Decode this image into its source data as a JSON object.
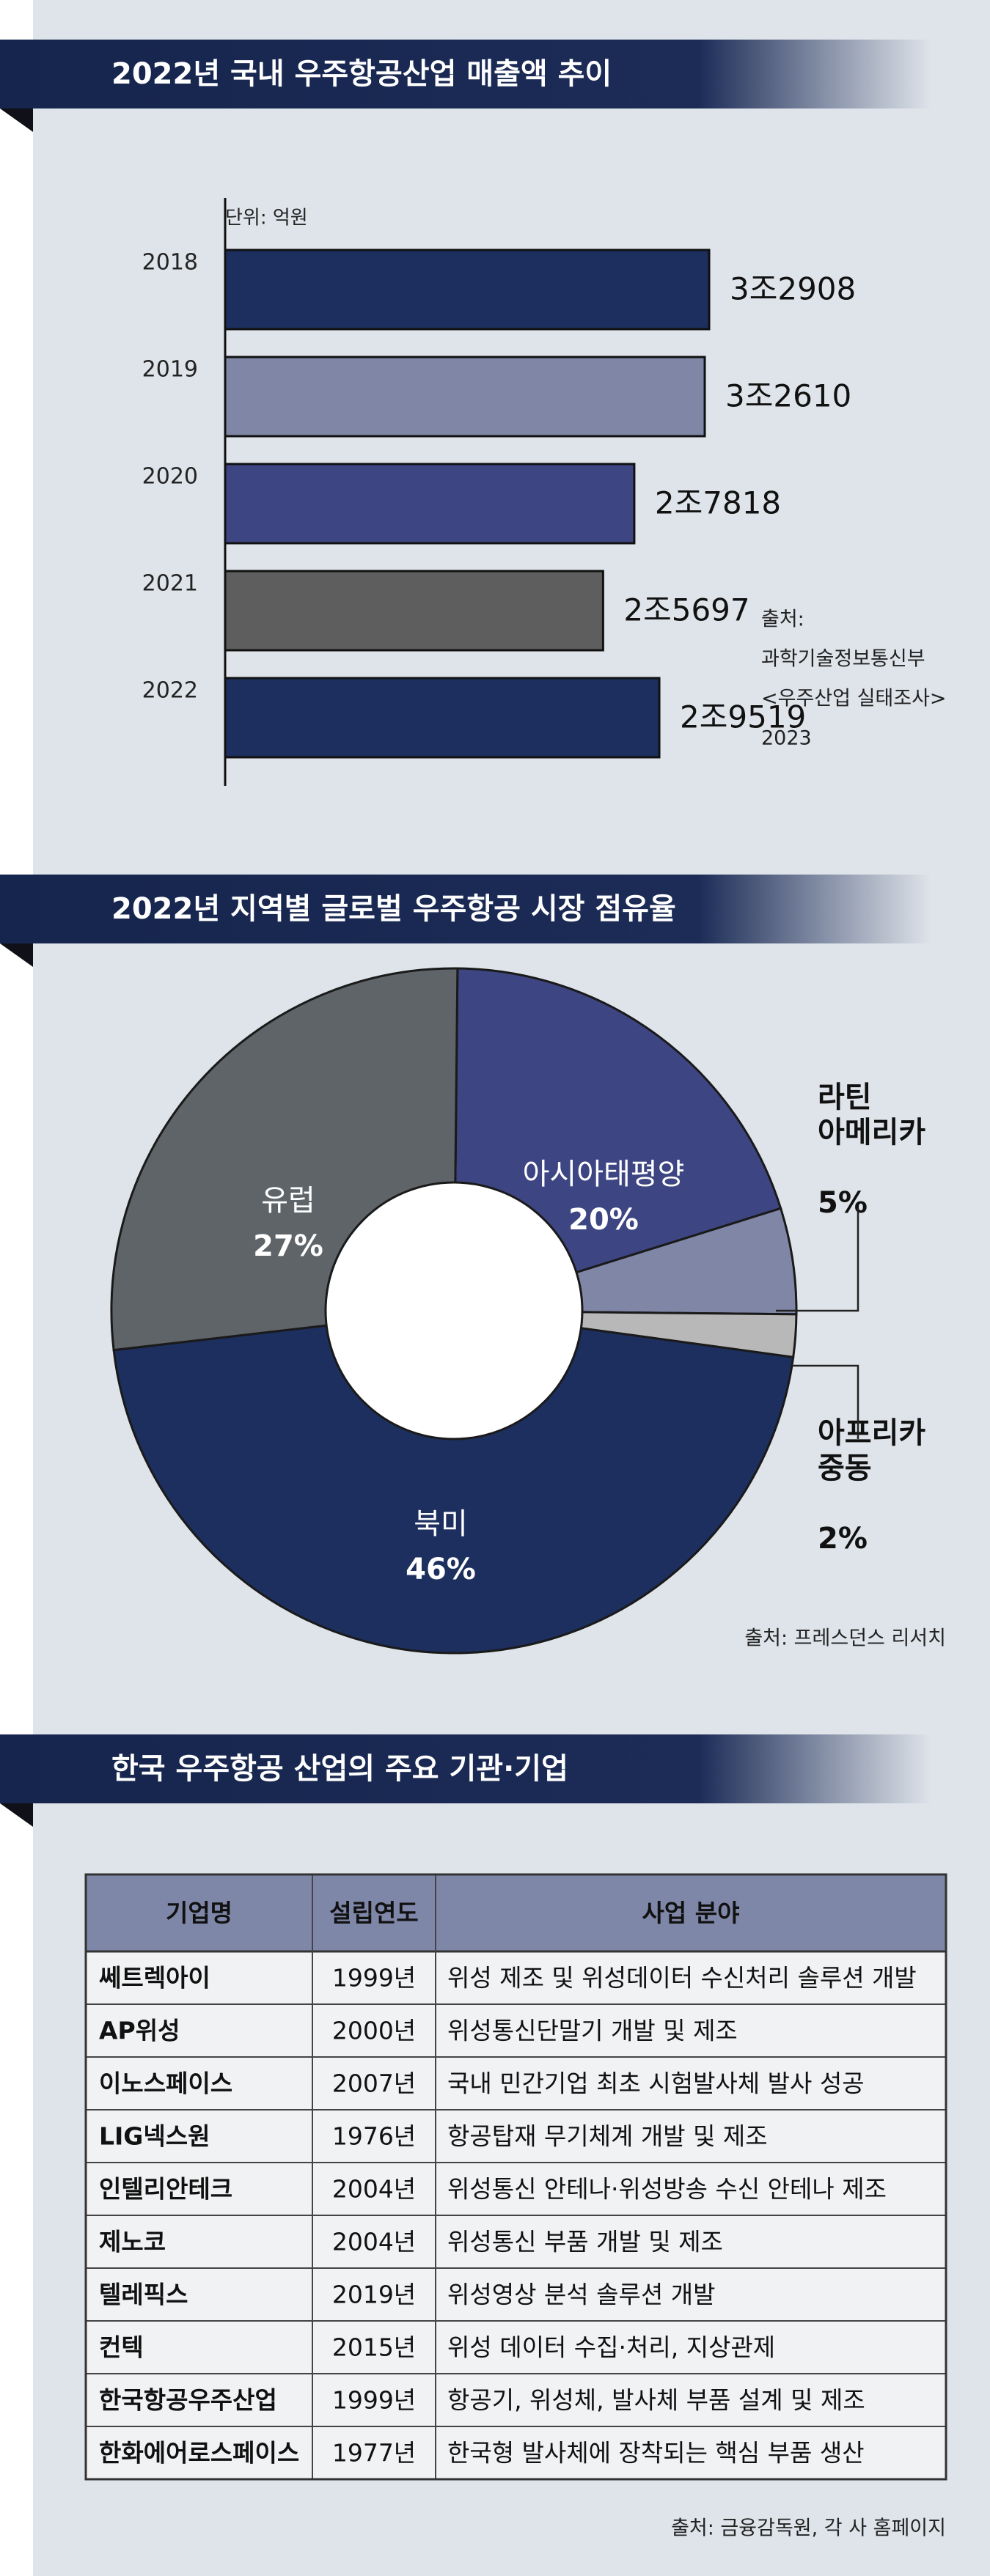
{
  "chart_data": [
    {
      "type": "bar",
      "orientation": "horizontal",
      "title": "2022년 국내 우주항공산업 매출액 추이",
      "unit": "단위: 억원",
      "categories": [
        "2018",
        "2019",
        "2020",
        "2021",
        "2022"
      ],
      "values": [
        32908,
        32610,
        27818,
        25697,
        29519
      ],
      "value_labels": [
        "3조2908",
        "3조2610",
        "2조7818",
        "2조5697",
        "2조9519"
      ],
      "colors": [
        "#1c2f5e",
        "#7f86a6",
        "#3d4682",
        "#5e5e5e",
        "#1c2f5e"
      ],
      "source": [
        "출처:",
        "과학기술정보통신부",
        "<우주산업 실태조사>",
        "2023"
      ]
    },
    {
      "type": "donut",
      "title": "2022년 지역별 글로벌 우주항공 시장 점유율",
      "categories": [
        "아시아태평양",
        "라틴 아메리카",
        "아프리카 중동",
        "북미",
        "유럽"
      ],
      "values": [
        20,
        5,
        2,
        46,
        27
      ],
      "value_labels": [
        "20%",
        "5%",
        "2%",
        "46%",
        "27%"
      ],
      "colors": [
        "#3d4682",
        "#7f86a6",
        "#b8b8b8",
        "#1c2f5e",
        "#5f6468"
      ],
      "source": "출처: 프레스던스 리서치"
    }
  ],
  "table": {
    "title": "한국 우주항공 산업의 주요 기관·기업",
    "columns": [
      "기업명",
      "설립연도",
      "사업 분야"
    ],
    "rows": [
      [
        "쎄트렉아이",
        "1999년",
        "위성 제조 및 위성데이터 수신처리 솔루션 개발"
      ],
      [
        "AP위성",
        "2000년",
        "위성통신단말기 개발 및 제조"
      ],
      [
        "이노스페이스",
        "2007년",
        "국내 민간기업 최초 시험발사체 발사 성공"
      ],
      [
        "LIG넥스원",
        "1976년",
        "항공탑재 무기체계 개발 및 제조"
      ],
      [
        "인텔리안테크",
        "2004년",
        "위성통신 안테나·위성방송 수신 안테나 제조"
      ],
      [
        "제노코",
        "2004년",
        "위성통신 부품 개발 및 제조"
      ],
      [
        "텔레픽스",
        "2019년",
        "위성영상 분석 솔루션 개발"
      ],
      [
        "컨텍",
        "2015년",
        "위성 데이터 수집·처리, 지상관제"
      ],
      [
        "한국항공우주산업",
        "1999년",
        "항공기, 위성체, 발사체 부품 설계 및 제조"
      ],
      [
        "한화에어로스페이스",
        "1977년",
        "한국형 발사체에 장착되는 핵심 부품 생산"
      ]
    ],
    "source": "출처: 금융감독원, 각 사 홈페이지"
  }
}
